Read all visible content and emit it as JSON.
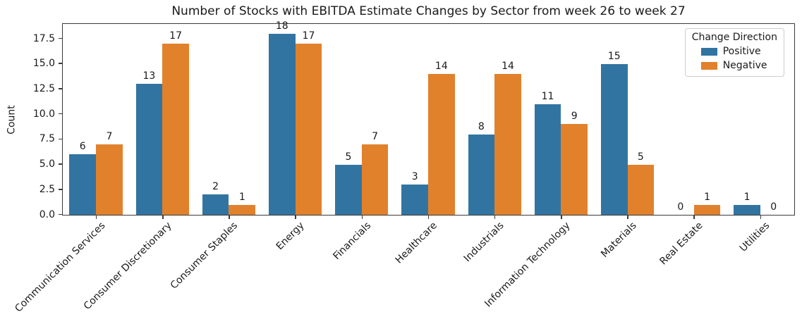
{
  "chart_data": {
    "type": "bar",
    "title": "Number of Stocks with EBITDA Estimate Changes by Sector from week 26 to week 27",
    "xlabel": "",
    "ylabel": "Count",
    "categories": [
      "Communication Services",
      "Consumer Discretionary",
      "Consumer Staples",
      "Energy",
      "Financials",
      "Healthcare",
      "Industrials",
      "Information Technology",
      "Materials",
      "Real Estate",
      "Utilities"
    ],
    "series": [
      {
        "name": "Positive",
        "color": "#3274a1",
        "values": [
          6,
          13,
          2,
          18,
          5,
          3,
          8,
          11,
          15,
          0,
          1
        ]
      },
      {
        "name": "Negative",
        "color": "#e1812c",
        "values": [
          7,
          17,
          1,
          17,
          7,
          14,
          14,
          9,
          5,
          1,
          0
        ]
      }
    ],
    "legend": {
      "title": "Change Direction",
      "position": "upper right"
    },
    "ylim": [
      0,
      18.9
    ],
    "yticks": [
      0.0,
      2.5,
      5.0,
      7.5,
      10.0,
      12.5,
      15.0,
      17.5
    ],
    "bar_labels": true,
    "grid": false,
    "x_tick_rotation_deg": 45
  }
}
